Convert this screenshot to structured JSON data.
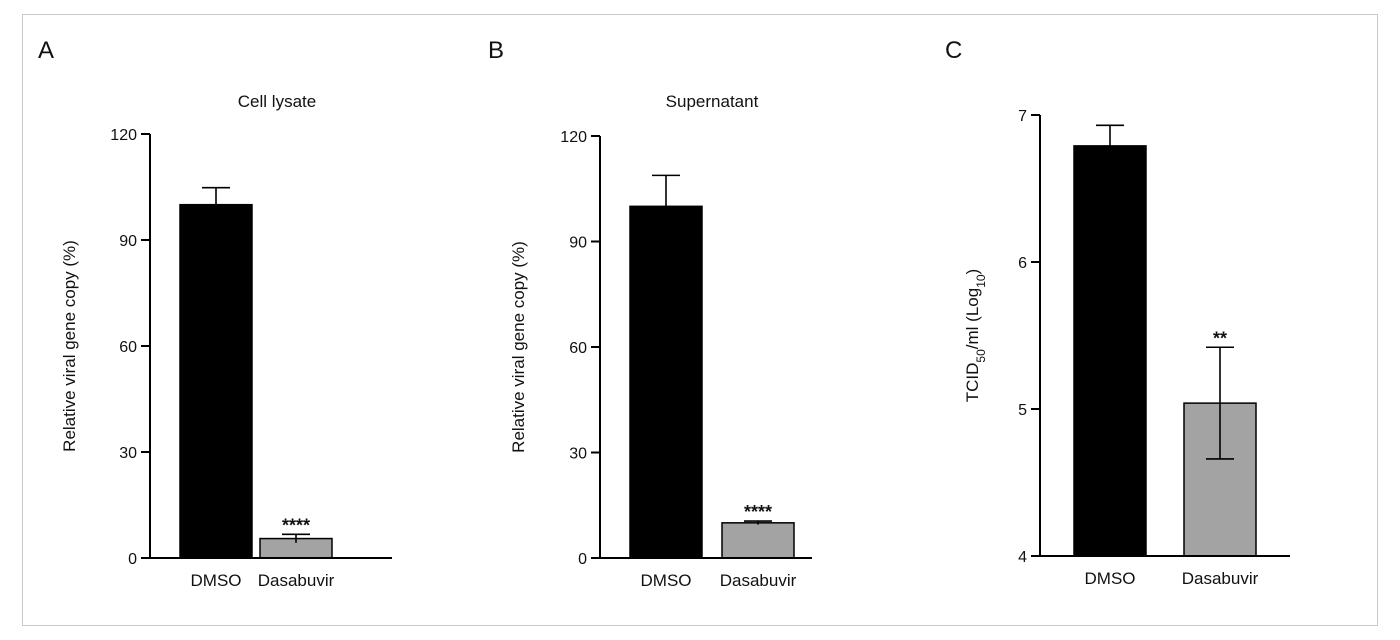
{
  "chart_data": [
    {
      "type": "bar",
      "panel": "A",
      "title": "Cell lysate",
      "ylabel": "Relative viral gene copy (%)",
      "xlabel": "",
      "categories": [
        "DMSO",
        "Dasabuvir"
      ],
      "values": [
        100,
        5.5
      ],
      "errors": [
        4.8,
        1.2
      ],
      "significance": [
        "",
        "****"
      ],
      "bar_colors": [
        "#000000",
        "#a3a3a3"
      ],
      "ylim": [
        0,
        120
      ],
      "yticks": [
        "0",
        "30",
        "60",
        "90",
        "120"
      ],
      "grid": false
    },
    {
      "type": "bar",
      "panel": "B",
      "title": "Supernatant",
      "ylabel": "Relative viral gene copy (%)",
      "xlabel": "",
      "categories": [
        "DMSO",
        "Dasabuvir"
      ],
      "values": [
        100,
        10
      ],
      "errors": [
        8.8,
        0.5
      ],
      "significance": [
        "",
        "****"
      ],
      "bar_colors": [
        "#000000",
        "#a3a3a3"
      ],
      "ylim": [
        0,
        120
      ],
      "yticks": [
        "0",
        "30",
        "60",
        "90",
        "120"
      ],
      "grid": false
    },
    {
      "type": "bar",
      "panel": "C",
      "title": "",
      "ylabel": "TCID50/ml (Log10)",
      "ylabel_parts": [
        "TCID",
        "50",
        "/ml (Log",
        "10",
        ")"
      ],
      "xlabel": "",
      "categories": [
        "DMSO",
        "Dasabuvir"
      ],
      "values": [
        6.79,
        5.04
      ],
      "errors": [
        0.14,
        0.38
      ],
      "significance": [
        "",
        "**"
      ],
      "bar_colors": [
        "#000000",
        "#a3a3a3"
      ],
      "ylim": [
        4,
        7
      ],
      "yticks": [
        "4",
        "5",
        "6",
        "7"
      ],
      "grid": false
    }
  ]
}
